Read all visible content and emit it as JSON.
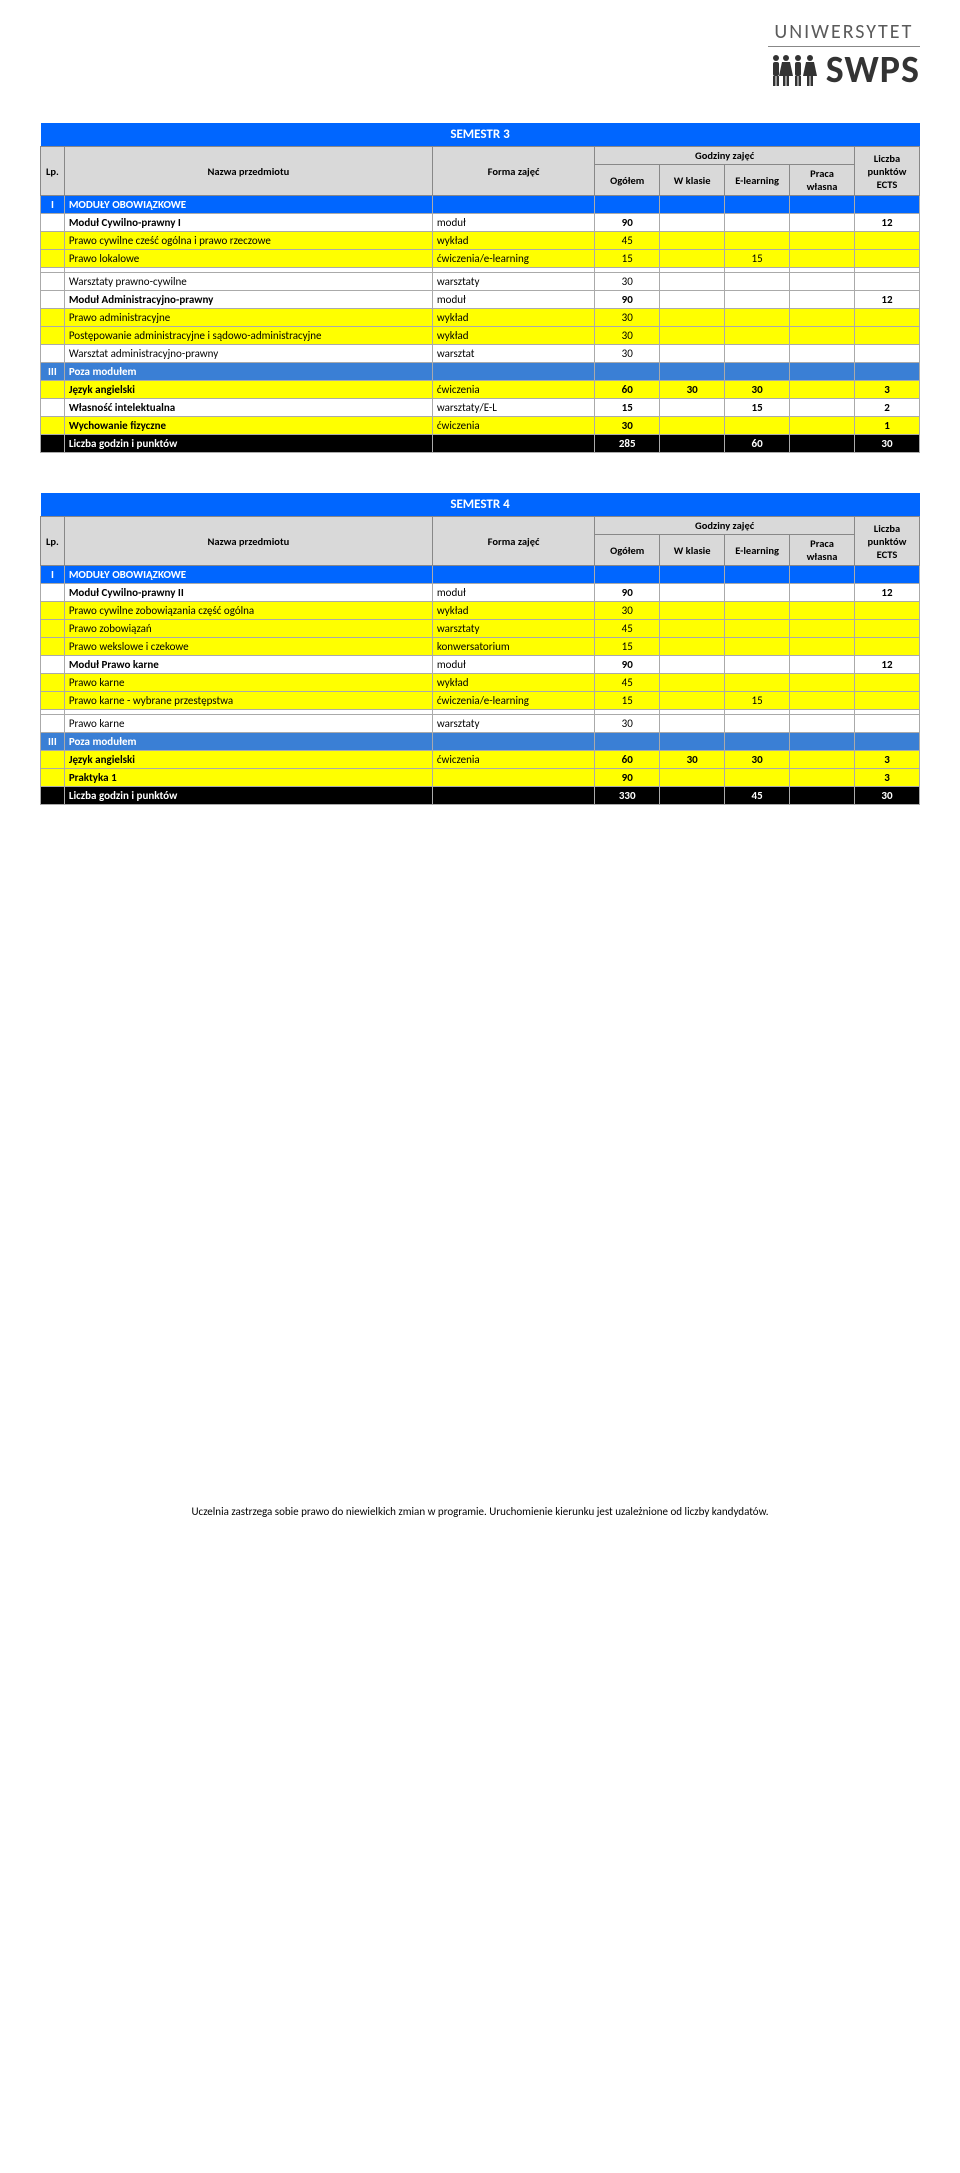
{
  "logo": {
    "top": "UNIWERSYTET",
    "bottom": "SWPS"
  },
  "semesters": [
    {
      "title": "SEMESTR 3",
      "header": {
        "lp": "Lp.",
        "name": "Nazwa przedmiotu",
        "form": "Forma zajęć",
        "hours_group": "Godziny zajęć",
        "total": "Ogółem",
        "inclass": "W klasie",
        "elearn": "E-learning",
        "own": "Praca własna",
        "ects": "Liczba punktów ECTS"
      },
      "rows": [
        {
          "type": "blue",
          "lp": "I",
          "name": "MODUŁY OBOWIĄZKOWE"
        },
        {
          "type": "white",
          "name": "Moduł Cywilno-prawny I",
          "form": "moduł",
          "total": "90",
          "ects": "12",
          "bold": true
        },
        {
          "type": "yellow",
          "name": "Prawo cywilne cześć ogólna i prawo rzeczowe",
          "form": "wykład",
          "total": "45"
        },
        {
          "type": "yellow",
          "name": "Prawo lokalowe",
          "form": "ćwiczenia/e-learning",
          "total": "15",
          "elearn": "15"
        },
        {
          "type": "white",
          "name": "",
          "form": ""
        },
        {
          "type": "white",
          "name": "Warsztaty prawno-cywilne",
          "form": "warsztaty",
          "total": "30"
        },
        {
          "type": "white",
          "name": "Moduł Administracyjno-prawny",
          "form": "moduł",
          "total": "90",
          "ects": "12",
          "bold": true
        },
        {
          "type": "yellow",
          "name": "Prawo administracyjne",
          "form": "wykład",
          "total": "30"
        },
        {
          "type": "yellow",
          "name": "Postępowanie administracyjne i sądowo-administracyjne",
          "form": "wykład",
          "total": "30"
        },
        {
          "type": "white",
          "name": "Warsztat administracyjno-prawny",
          "form": "warsztat",
          "total": "30"
        },
        {
          "type": "blue2",
          "lp": "III",
          "name": "Poza modułem"
        },
        {
          "type": "yellow",
          "name": "Język angielski",
          "form": "ćwiczenia",
          "total": "60",
          "inclass": "30",
          "elearn": "30",
          "ects": "3",
          "bold": true
        },
        {
          "type": "white",
          "name": "Własność intelektualna",
          "form": "warsztaty/E-L",
          "total": "15",
          "elearn": "15",
          "ects": "2",
          "bold": true
        },
        {
          "type": "yellow",
          "name": "Wychowanie fizyczne",
          "form": "ćwiczenia",
          "total": "30",
          "ects": "1",
          "bold": true
        },
        {
          "type": "black",
          "name": "Liczba godzin i punktów",
          "total": "285",
          "elearn": "60",
          "ects": "30"
        }
      ]
    },
    {
      "title": "SEMESTR 4",
      "header": {
        "lp": "Lp.",
        "name": "Nazwa przedmiotu",
        "form": "Forma zajęć",
        "hours_group": "Godziny zajęć",
        "total": "Ogółem",
        "inclass": "W klasie",
        "elearn": "E-learning",
        "own": "Praca własna",
        "ects": "Liczba punktów ECTS"
      },
      "rows": [
        {
          "type": "blue",
          "lp": "I",
          "name": "MODUŁY OBOWIĄZKOWE"
        },
        {
          "type": "white",
          "name": "Moduł Cywilno-prawny II",
          "form": "moduł",
          "total": "90",
          "ects": "12",
          "bold": true
        },
        {
          "type": "yellow",
          "name": "Prawo cywilne zobowiązania część ogólna",
          "form": "wykład",
          "total": "30"
        },
        {
          "type": "yellow",
          "name": "Prawo zobowiązań",
          "form": "warsztaty",
          "total": "45"
        },
        {
          "type": "yellow",
          "name": "Prawo wekslowe i czekowe",
          "form": "konwersatorium",
          "total": "15"
        },
        {
          "type": "white",
          "name": "Moduł Prawo karne",
          "form": "moduł",
          "total": "90",
          "ects": "12",
          "bold": true
        },
        {
          "type": "yellow",
          "name": "Prawo karne",
          "form": "wykład",
          "total": "45"
        },
        {
          "type": "yellow",
          "name": "Prawo karne - wybrane przestępstwa",
          "form": "ćwiczenia/e-learning",
          "total": "15",
          "elearn": "15"
        },
        {
          "type": "white",
          "name": "",
          "form": ""
        },
        {
          "type": "white",
          "name": "Prawo karne",
          "form": "warsztaty",
          "total": "30"
        },
        {
          "type": "blue2",
          "lp": "III",
          "name": "Poza modułem"
        },
        {
          "type": "yellow",
          "name": "Język angielski",
          "form": "ćwiczenia",
          "total": "60",
          "inclass": "30",
          "elearn": "30",
          "ects": "3",
          "bold": true
        },
        {
          "type": "yellow",
          "name": "Praktyka 1",
          "form": "",
          "total": "90",
          "ects": "3",
          "bold": true
        },
        {
          "type": "black",
          "name": "Liczba godzin i punktów",
          "total": "330",
          "elearn": "45",
          "ects": "30"
        }
      ]
    }
  ],
  "footer": "Uczelnia zastrzega sobie prawo do niewielkich zmian w programie. Uruchomienie kierunku jest uzależnione od liczby kandydatów."
}
